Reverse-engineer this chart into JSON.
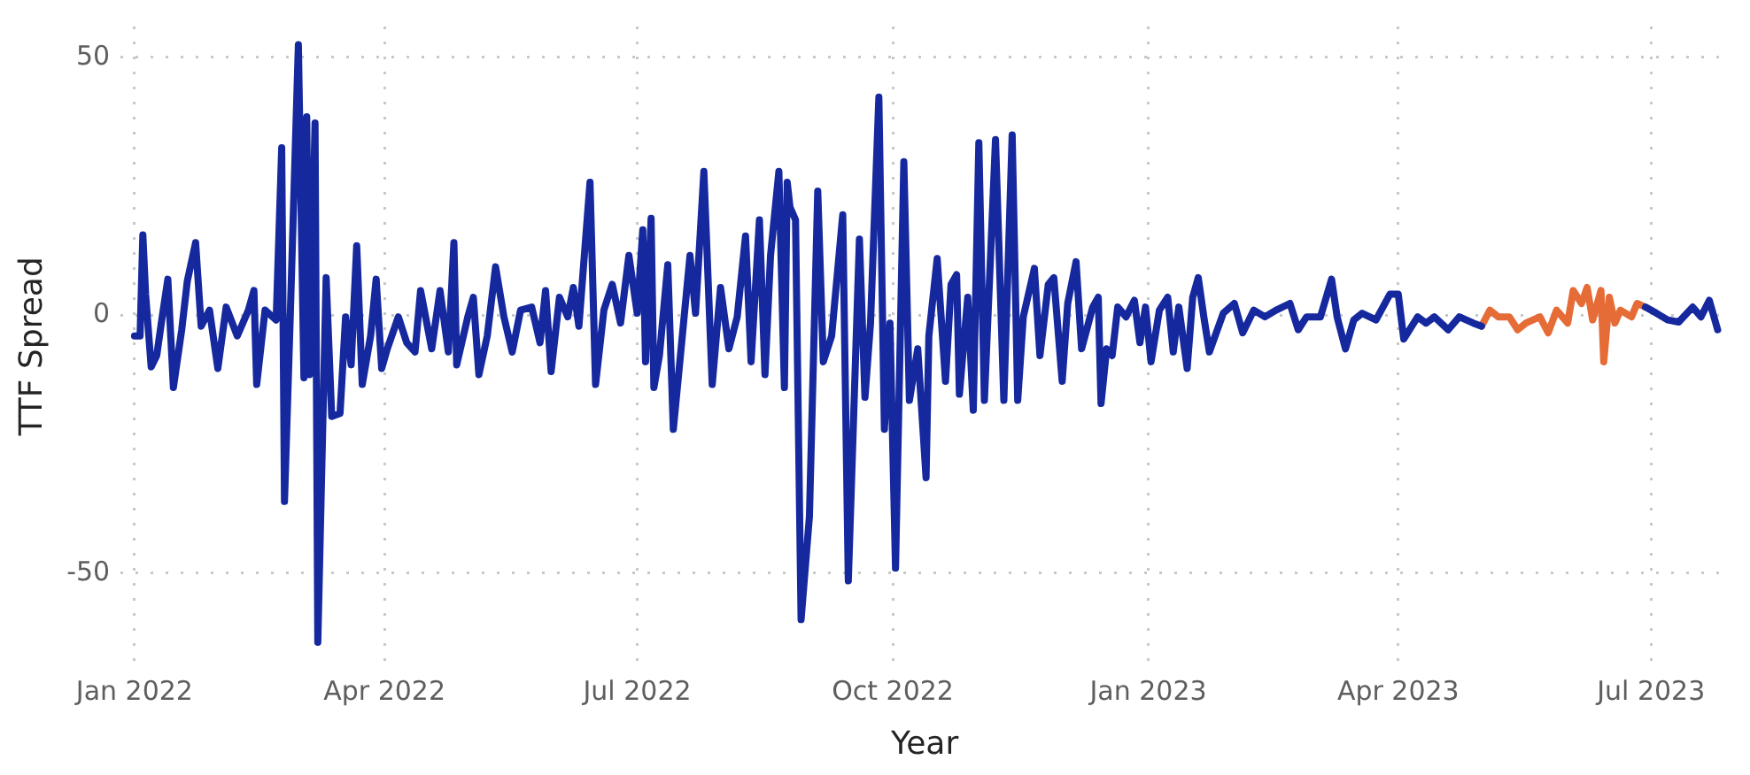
{
  "chart_data": {
    "type": "line",
    "xlabel": "Year",
    "ylabel": "TTF Spread",
    "xlim": [
      "2021-12-27",
      "2023-07-29"
    ],
    "ylim": [
      -68,
      56
    ],
    "xticks": [
      {
        "value": "2022-01-01",
        "label": "Jan 2022"
      },
      {
        "value": "2022-04-01",
        "label": "Apr 2022"
      },
      {
        "value": "2022-07-01",
        "label": "Jul 2022"
      },
      {
        "value": "2022-10-01",
        "label": "Oct 2022"
      },
      {
        "value": "2023-01-01",
        "label": "Jan 2023"
      },
      {
        "value": "2023-04-01",
        "label": "Apr 2023"
      },
      {
        "value": "2023-07-01",
        "label": "Jul 2023"
      }
    ],
    "yticks": [
      -50,
      0,
      50
    ],
    "grid": true,
    "line_style": "solid",
    "series": [
      {
        "color": "#15289e",
        "x": [
          "2022-01-01",
          "2022-01-03",
          "2022-01-04",
          "2022-01-05",
          "2022-01-07",
          "2022-01-09",
          "2022-01-11",
          "2022-01-13",
          "2022-01-15",
          "2022-01-18",
          "2022-01-20",
          "2022-01-23",
          "2022-01-25",
          "2022-01-28",
          "2022-01-31",
          "2022-02-03",
          "2022-02-07",
          "2022-02-11",
          "2022-02-13",
          "2022-02-14",
          "2022-02-17",
          "2022-02-21",
          "2022-02-23",
          "2022-02-24",
          "2022-02-26",
          "2022-03-01",
          "2022-03-03",
          "2022-03-04",
          "2022-03-05",
          "2022-03-07",
          "2022-03-08",
          "2022-03-11",
          "2022-03-13",
          "2022-03-16",
          "2022-03-18",
          "2022-03-20",
          "2022-03-22",
          "2022-03-24",
          "2022-03-27",
          "2022-03-29",
          "2022-03-31",
          "2022-04-02",
          "2022-04-06",
          "2022-04-09",
          "2022-04-12",
          "2022-04-14",
          "2022-04-18",
          "2022-04-21",
          "2022-04-24",
          "2022-04-26",
          "2022-04-27",
          "2022-05-01",
          "2022-05-03",
          "2022-05-05",
          "2022-05-08",
          "2022-05-11",
          "2022-05-14",
          "2022-05-17",
          "2022-05-20",
          "2022-05-24",
          "2022-05-27",
          "2022-05-29",
          "2022-05-31",
          "2022-06-03",
          "2022-06-06",
          "2022-06-08",
          "2022-06-10",
          "2022-06-14",
          "2022-06-16",
          "2022-06-19",
          "2022-06-22",
          "2022-06-25",
          "2022-06-28",
          "2022-07-01",
          "2022-07-03",
          "2022-07-04",
          "2022-07-06",
          "2022-07-07",
          "2022-07-09",
          "2022-07-12",
          "2022-07-14",
          "2022-07-17",
          "2022-07-20",
          "2022-07-22",
          "2022-07-25",
          "2022-07-28",
          "2022-07-31",
          "2022-08-03",
          "2022-08-06",
          "2022-08-09",
          "2022-08-11",
          "2022-08-14",
          "2022-08-16",
          "2022-08-18",
          "2022-08-21",
          "2022-08-23",
          "2022-08-24",
          "2022-08-25",
          "2022-08-27",
          "2022-08-29",
          "2022-09-01",
          "2022-09-04",
          "2022-09-06",
          "2022-09-09",
          "2022-09-13",
          "2022-09-15",
          "2022-09-19",
          "2022-09-21",
          "2022-09-23",
          "2022-09-26",
          "2022-09-28",
          "2022-09-30",
          "2022-10-02",
          "2022-10-05",
          "2022-10-07",
          "2022-10-10",
          "2022-10-13",
          "2022-10-14",
          "2022-10-17",
          "2022-10-20",
          "2022-10-22",
          "2022-10-24",
          "2022-10-25",
          "2022-10-28",
          "2022-10-30",
          "2022-11-01",
          "2022-11-03",
          "2022-11-07",
          "2022-11-10",
          "2022-11-13",
          "2022-11-15",
          "2022-11-17",
          "2022-11-21",
          "2022-11-23",
          "2022-11-26",
          "2022-11-28",
          "2022-12-01",
          "2022-12-03",
          "2022-12-06",
          "2022-12-08",
          "2022-12-12",
          "2022-12-14",
          "2022-12-15",
          "2022-12-17",
          "2022-12-19",
          "2022-12-21",
          "2022-12-24",
          "2022-12-27",
          "2022-12-29",
          "2022-12-31",
          "2023-01-02",
          "2023-01-05",
          "2023-01-08",
          "2023-01-10",
          "2023-01-12",
          "2023-01-15",
          "2023-01-17",
          "2023-01-19",
          "2023-01-21",
          "2023-01-23",
          "2023-01-28",
          "2023-02-01",
          "2023-02-04",
          "2023-02-08",
          "2023-02-12",
          "2023-02-16",
          "2023-02-21",
          "2023-02-24",
          "2023-02-27",
          "2023-03-04",
          "2023-03-08",
          "2023-03-10",
          "2023-03-13",
          "2023-03-16",
          "2023-03-19",
          "2023-03-24",
          "2023-03-29",
          "2023-04-01",
          "2023-04-03",
          "2023-04-08",
          "2023-04-11",
          "2023-04-14",
          "2023-04-19",
          "2023-04-23",
          "2023-04-28",
          "2023-05-01",
          "2023-06-01",
          "2023-06-29",
          "2023-07-03",
          "2023-07-07",
          "2023-07-11",
          "2023-07-16",
          "2023-07-19",
          "2023-07-22",
          "2023-07-25"
        ],
        "values": [
          -4,
          -4,
          15.6,
          4.1,
          -10,
          -7.8,
          -0.2,
          7,
          -14,
          -2.8,
          6.6,
          14.1,
          -2.1,
          1,
          -10.3,
          1.6,
          -4,
          1,
          4.8,
          -13.4,
          1,
          -0.9,
          32.5,
          -36.1,
          -1.5,
          52.5,
          -12.1,
          38.5,
          -11.5,
          37.3,
          -63.4,
          7.3,
          -19.6,
          -19,
          -0.3,
          -9.6,
          13.5,
          -13.4,
          -4,
          7,
          -10.3,
          -6.5,
          -0.3,
          -5.3,
          -7.1,
          4.8,
          -6.5,
          4.8,
          -7.1,
          14.1,
          -9.6,
          -0.3,
          3.5,
          -11.5,
          -4,
          9.4,
          -0.3,
          -7.1,
          1,
          1.6,
          -5.3,
          4.8,
          -10.9,
          3.5,
          -0.3,
          5.4,
          -2.1,
          25.8,
          -13.4,
          1,
          6,
          -1.5,
          11.6,
          0.4,
          16.6,
          -9,
          18.8,
          -14,
          -7.8,
          9.8,
          -22.1,
          -5.3,
          11.6,
          0.4,
          27.9,
          -13.4,
          5.4,
          -6.5,
          -0.3,
          15.4,
          -9,
          18.5,
          -11.5,
          11.6,
          27.9,
          -14,
          25.8,
          21,
          18.5,
          -59,
          -39,
          24.1,
          -9,
          -4,
          19.5,
          -51.5,
          14.8,
          -15.9,
          -1.5,
          42.3,
          -22.1,
          -1.5,
          -49,
          29.8,
          -16.5,
          -6.5,
          -31.5,
          -4,
          11,
          -12.8,
          6,
          7.9,
          -15.3,
          3.5,
          -18.4,
          33.5,
          -16.5,
          34.1,
          -16.5,
          35,
          -16.5,
          -0.3,
          9.1,
          -7.8,
          6,
          7.3,
          -12.8,
          2.3,
          10.4,
          -6.5,
          1.6,
          3.5,
          -17.1,
          -6.5,
          -7.8,
          1.6,
          -0.3,
          2.9,
          -5.3,
          1.6,
          -9,
          1,
          3.5,
          -7.1,
          1.6,
          -10.3,
          3.5,
          7.3,
          -0.3,
          -7.1,
          0.4,
          2.3,
          -3.4,
          1,
          -0.3,
          1,
          2.3,
          -2.8,
          -0.3,
          -0.3,
          7,
          -0.3,
          -6.5,
          -0.9,
          0.4,
          -0.9,
          4.1,
          4.1,
          -4.6,
          -0.3,
          -1.5,
          -0.3,
          -2.8,
          -0.3,
          -1.5,
          -2.1,
          null,
          1.6,
          0.4,
          -0.9,
          -1.3,
          1.6,
          -0.3,
          2.9,
          -2.8
        ]
      },
      {
        "color": "#e66c37",
        "x": [
          "2023-05-01",
          "2023-05-04",
          "2023-05-07",
          "2023-05-11",
          "2023-05-14",
          "2023-05-17",
          "2023-05-22",
          "2023-05-25",
          "2023-05-28",
          "2023-06-01",
          "2023-06-03",
          "2023-06-06",
          "2023-06-08",
          "2023-06-10",
          "2023-06-13",
          "2023-06-14",
          "2023-06-16",
          "2023-06-18",
          "2023-06-20",
          "2023-06-24",
          "2023-06-26",
          "2023-06-29"
        ],
        "values": [
          -2.1,
          1,
          -0.3,
          -0.3,
          -2.8,
          -1.5,
          -0.3,
          -3.4,
          1,
          -1.5,
          4.8,
          2.3,
          5.4,
          -0.9,
          4.8,
          -9,
          3.5,
          -1.5,
          1,
          -0.3,
          2.3,
          1.6
        ]
      }
    ]
  }
}
